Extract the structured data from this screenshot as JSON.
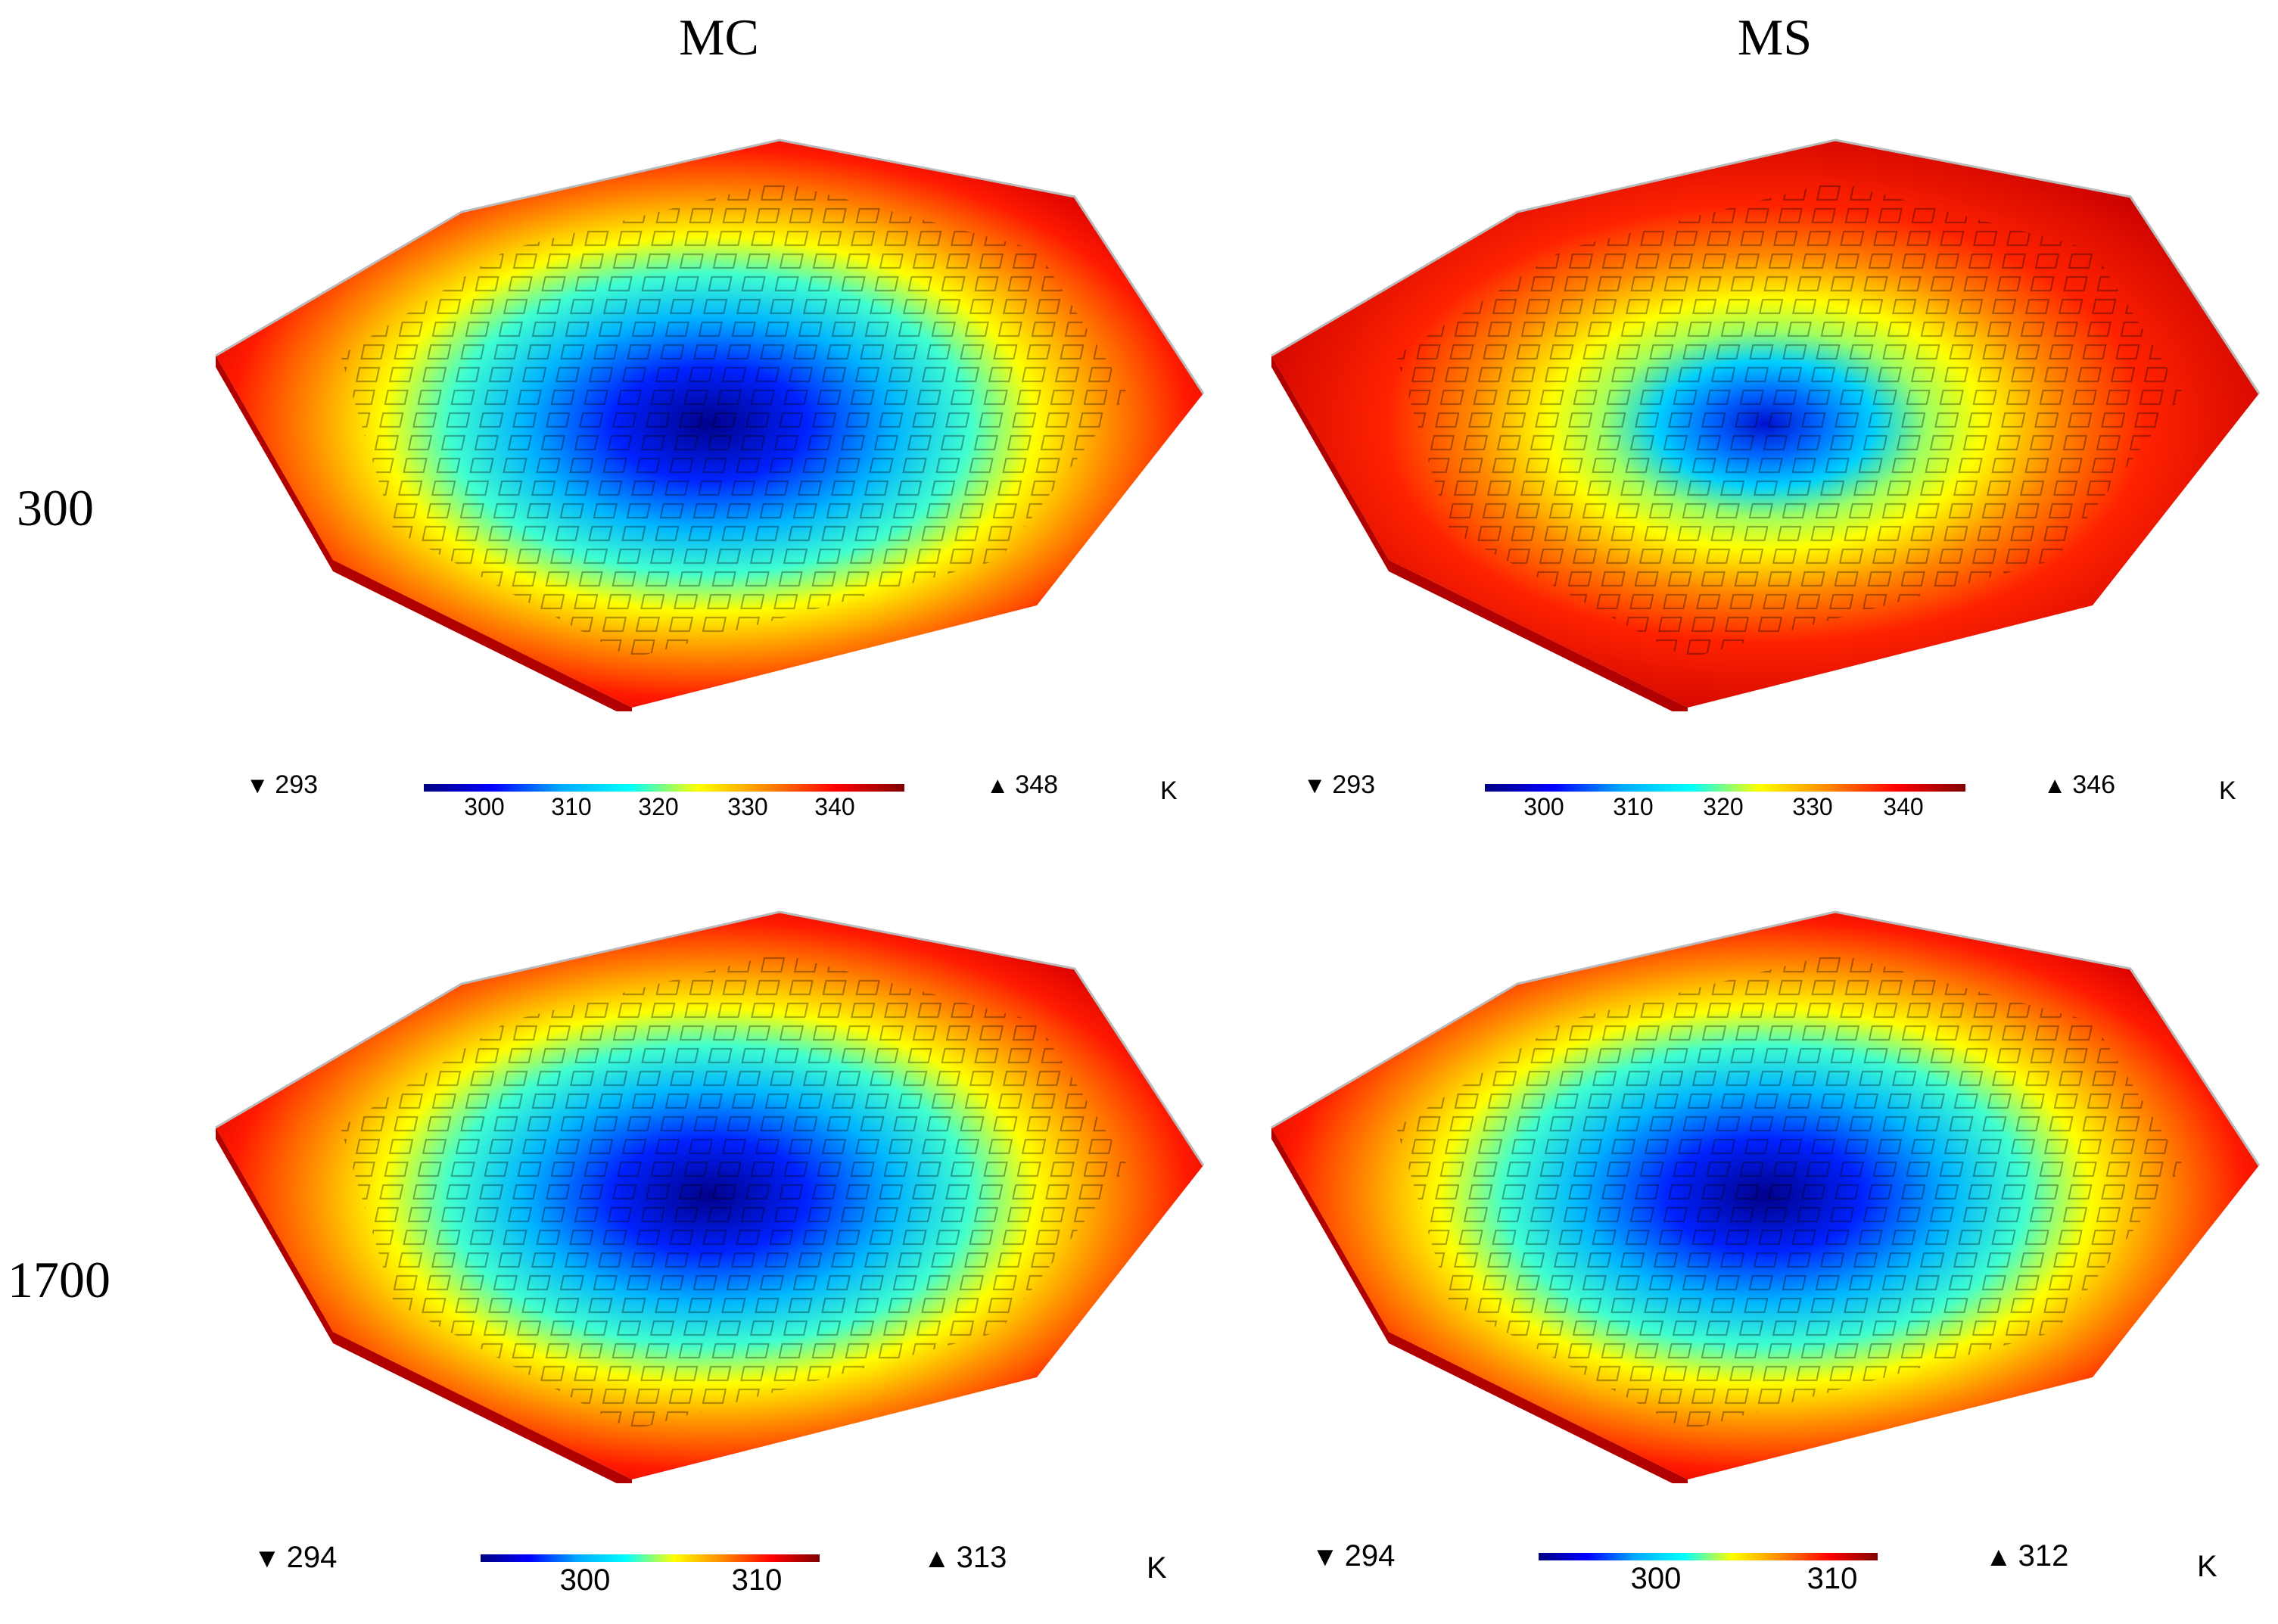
{
  "columns": [
    "MC",
    "MS"
  ],
  "rows": [
    "300",
    "1700"
  ],
  "unit": "K",
  "panels": [
    {
      "id": "mc-300",
      "min": "293",
      "max": "348",
      "ticks": [
        "300",
        "310",
        "320",
        "330",
        "340"
      ],
      "cold_spread": "large"
    },
    {
      "id": "ms-300",
      "min": "293",
      "max": "346",
      "ticks": [
        "300",
        "310",
        "320",
        "330",
        "340"
      ],
      "cold_spread": "small"
    },
    {
      "id": "mc-1700",
      "min": "294",
      "max": "313",
      "ticks": [
        "300",
        "310"
      ],
      "cold_spread": "large"
    },
    {
      "id": "ms-1700",
      "min": "294",
      "max": "312",
      "ticks": [
        "300",
        "310"
      ],
      "cold_spread": "large"
    }
  ],
  "min_symbol": "▼",
  "max_symbol": "▲"
}
